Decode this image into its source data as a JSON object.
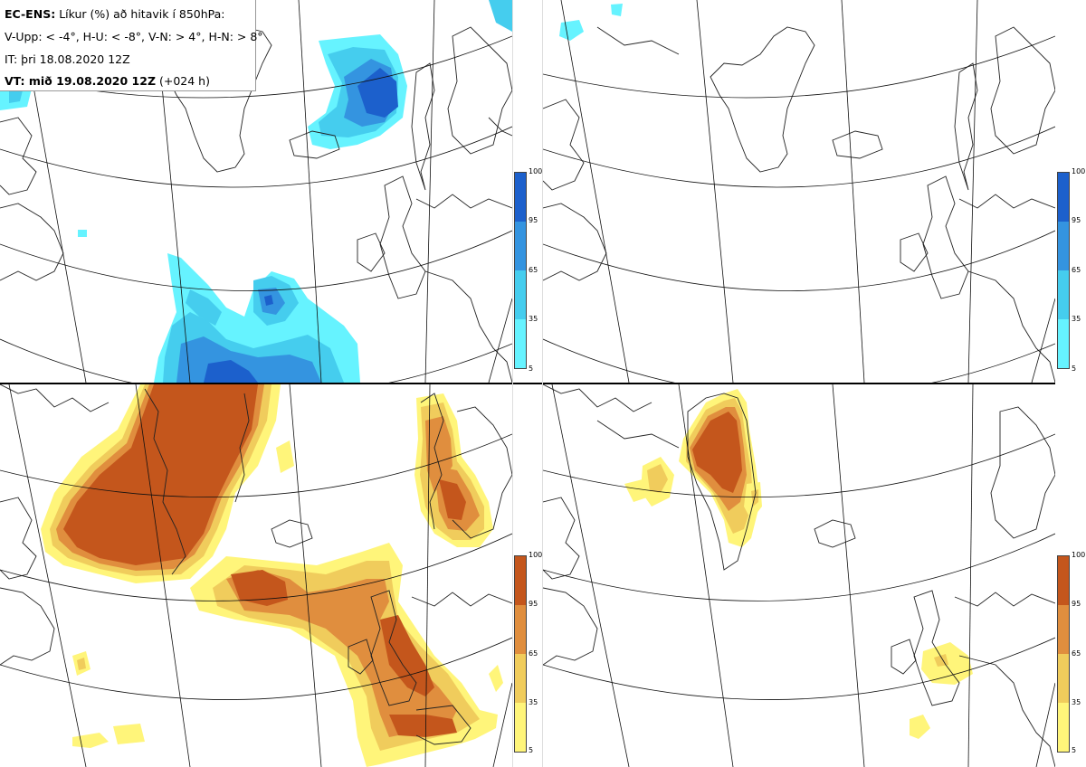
{
  "header": {
    "line1_bold": "EC-ENS:",
    "line1_rest": "Líkur (%) að hitavik í 850hPa:",
    "line2": "V-Upp: < -4°, H-U: < -8°, V-N: > 4°, H-N: > 8°",
    "line3": "IT: þri 18.08.2020 12Z",
    "line4_bold": "VT: mið 19.08.2020 12Z",
    "line4_rest": "(+024 h)"
  },
  "panels": [
    {
      "id": "V-Upp",
      "variable": "cold anomaly < -4°",
      "palette": "blue"
    },
    {
      "id": "H-U",
      "variable": "cold anomaly < -8°",
      "palette": "blue"
    },
    {
      "id": "V-N",
      "variable": "warm anomaly > 4°",
      "palette": "orange"
    },
    {
      "id": "H-N",
      "variable": "warm anomaly > 8°",
      "palette": "orange"
    }
  ],
  "colorbar": {
    "ticks": [
      "100",
      "95",
      "65",
      "35",
      "5"
    ]
  },
  "colors": {
    "blue_5": "#66f3ff",
    "blue_35": "#45cdee",
    "blue_65": "#3494e0",
    "blue_95": "#1c60cc",
    "orange_5": "#fff57a",
    "orange_35": "#f0cc5c",
    "orange_65": "#e08e3e",
    "orange_95": "#c4561c",
    "coast": "#222222",
    "grid": "#111111"
  }
}
